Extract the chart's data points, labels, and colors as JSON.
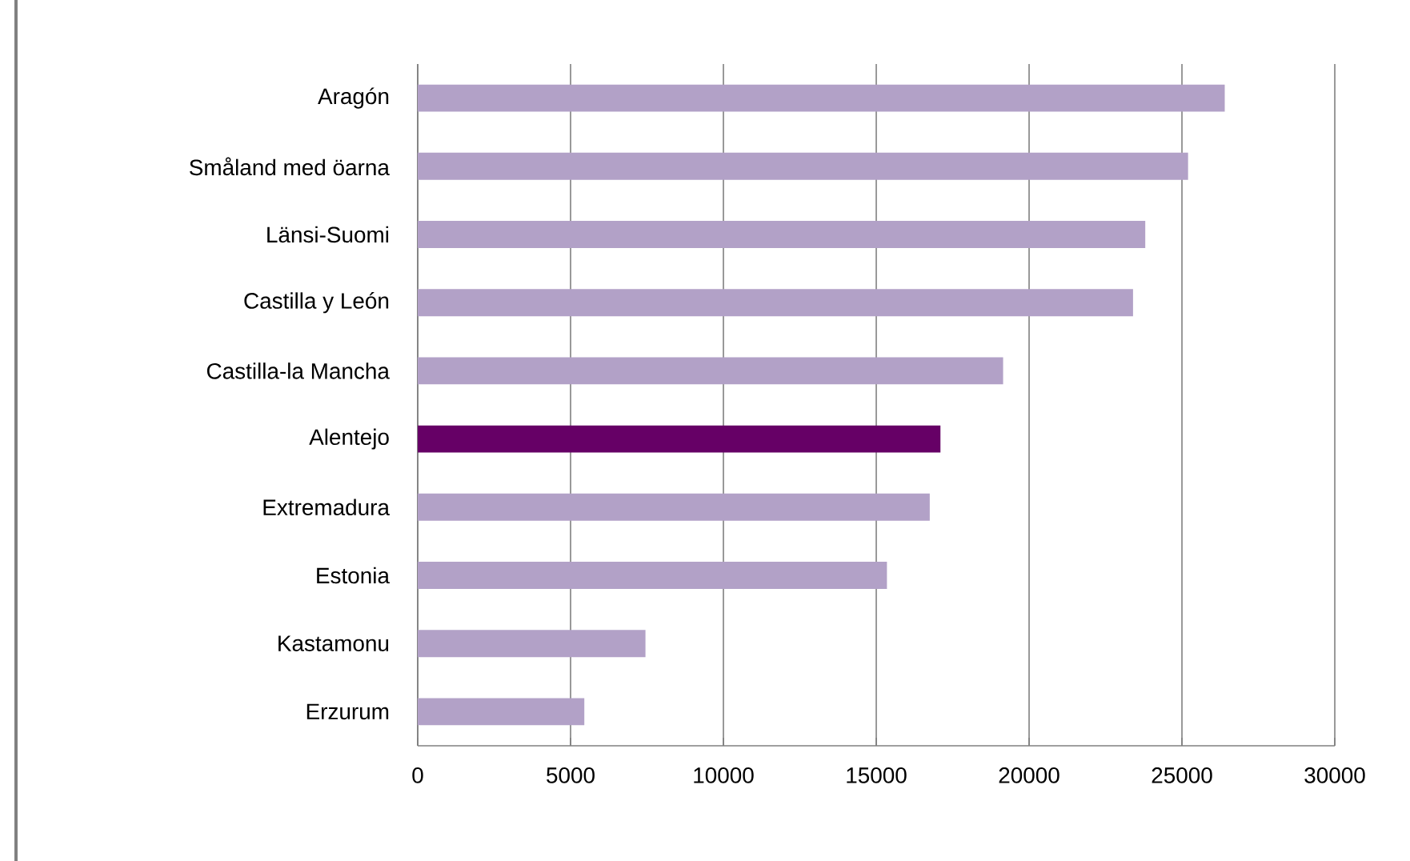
{
  "chart_data": {
    "type": "bar",
    "orientation": "horizontal",
    "categories": [
      "Aragón",
      "Småland med öarna",
      "Länsi-Suomi",
      "Castilla y León",
      "Castilla-la Mancha",
      "Alentejo",
      "Extremadura",
      "Estonia",
      "Kastamonu",
      "Erzurum"
    ],
    "values": [
      26400,
      25200,
      23800,
      23400,
      19150,
      17100,
      16750,
      15350,
      7450,
      5450
    ],
    "colors": [
      "#b2a1c7",
      "#b2a1c7",
      "#b2a1c7",
      "#b2a1c7",
      "#b2a1c7",
      "#660066",
      "#b2a1c7",
      "#b2a1c7",
      "#b2a1c7",
      "#b2a1c7"
    ],
    "xlim": [
      0,
      30000
    ],
    "xticks": [
      0,
      5000,
      10000,
      15000,
      20000,
      25000,
      30000
    ],
    "grid": "x"
  }
}
